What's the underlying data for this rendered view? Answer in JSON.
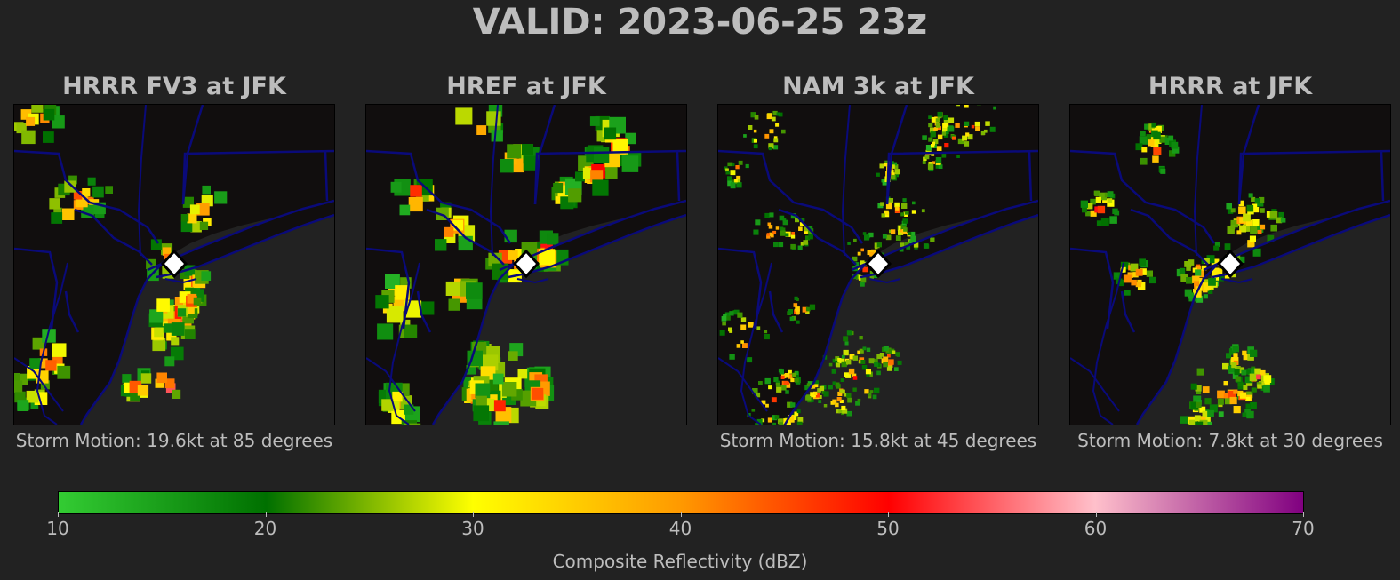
{
  "title": "VALID: 2023-06-25 23z",
  "panels": [
    {
      "title": "HRRR FV3 at JFK",
      "motion": "Storm Motion: 19.6kt at 85 degrees"
    },
    {
      "title": "HREF at JFK",
      "motion": ""
    },
    {
      "title": "NAM 3k at JFK",
      "motion": "Storm Motion: 15.8kt at 45 degrees"
    },
    {
      "title": "HRRR at JFK",
      "motion": "Storm Motion: 7.8kt at 30 degrees"
    }
  ],
  "colorbar": {
    "label": "Composite Reflectivity (dBZ)",
    "ticks": [
      "10",
      "20",
      "30",
      "40",
      "50",
      "60",
      "70"
    ],
    "range": [
      10,
      70
    ],
    "colors": [
      "#33cc33",
      "#007000",
      "#ffff00",
      "#ff9900",
      "#ff0000",
      "#ffc0cb",
      "#800080"
    ]
  },
  "chart_data": {
    "type": "heatmap",
    "title": "VALID: 2023-06-25 23z",
    "subplots": [
      "HRRR FV3 at JFK",
      "HREF at JFK",
      "NAM 3k at JFK",
      "HRRR at JFK"
    ],
    "value_label": "Composite Reflectivity (dBZ)",
    "vmin": 10,
    "vmax": 70,
    "marker": "JFK (white diamond)"
  }
}
